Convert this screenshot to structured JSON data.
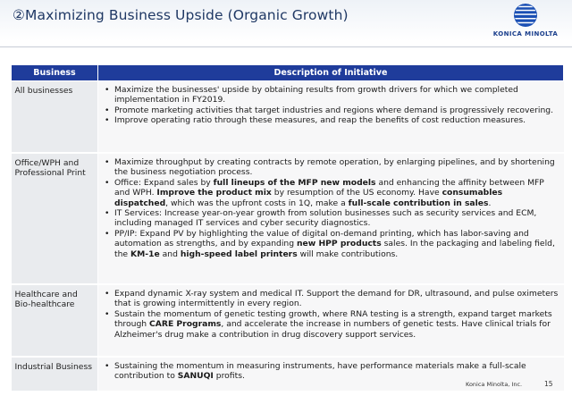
{
  "header": {
    "title": "②Maximizing Business Upside (Organic Growth)",
    "logo_text": "KONICA MINOLTA"
  },
  "table": {
    "columns": [
      "Business",
      "Description of Initiative"
    ],
    "rows": [
      {
        "business": "All businesses",
        "bullets": [
          [
            {
              "t": "Maximize the businesses' upside by obtaining results from growth drivers for which we completed implementation in FY2019."
            }
          ],
          [
            {
              "t": "Promote marketing activities that target industries and regions where demand is progressively recovering."
            }
          ],
          [
            {
              "t": "Improve operating ratio through these measures, and reap the benefits of cost reduction measures."
            }
          ]
        ]
      },
      {
        "business": "Office/WPH and Professional Print",
        "bullets": [
          [
            {
              "t": "Maximize throughput by creating contracts by remote operation, by enlarging pipelines, and by shortening the business negotiation process."
            }
          ],
          [
            {
              "t": "Office: Expand sales by "
            },
            {
              "t": "full lineups of the MFP new models",
              "b": true
            },
            {
              "t": " and enhancing the affinity between MFP and WPH. "
            },
            {
              "t": "Improve the product mix",
              "b": true
            },
            {
              "t": " by resumption of the US economy. Have "
            },
            {
              "t": "consumables dispatched",
              "b": true
            },
            {
              "t": ", which was the upfront costs in 1Q, make a "
            },
            {
              "t": "full-scale contribution in sales",
              "b": true
            },
            {
              "t": "."
            }
          ],
          [
            {
              "t": "IT Services: Increase year-on-year growth from solution businesses such as security services and ECM, including managed IT services and cyber security diagnostics."
            }
          ],
          [
            {
              "t": "PP/IP: Expand PV by highlighting the value of digital on-demand printing, which has labor-saving and automation as strengths, and by expanding "
            },
            {
              "t": "new HPP products",
              "b": true
            },
            {
              "t": " sales. In the packaging and labeling field, the "
            },
            {
              "t": "KM-1e",
              "b": true
            },
            {
              "t": " and "
            },
            {
              "t": "high-speed label printers",
              "b": true
            },
            {
              "t": " will make contributions."
            }
          ]
        ]
      },
      {
        "business": "Healthcare and Bio-healthcare",
        "bullets": [
          [
            {
              "t": "Expand dynamic X-ray system and medical IT. Support the demand for DR, ultrasound, and pulse oximeters that is growing intermittently in every region."
            }
          ],
          [
            {
              "t": "Sustain the momentum of genetic testing growth, where RNA testing is a strength, expand target markets through "
            },
            {
              "t": "CARE Programs",
              "b": true
            },
            {
              "t": ", and accelerate the increase in numbers of genetic tests. Have clinical trials for Alzheimer's drug make a contribution in drug discovery support services."
            }
          ]
        ]
      },
      {
        "business": "Industrial Business",
        "bullets": [
          [
            {
              "t": "Sustaining the momentum in measuring instruments, have performance materials make a full-scale contribution to "
            },
            {
              "t": "SANUQI",
              "b": true
            },
            {
              "t": " profits."
            }
          ]
        ]
      }
    ]
  },
  "footer": {
    "company": "Konica Minolta, Inc.",
    "page": "15"
  },
  "colors": {
    "header_blue": "#1f3c9b",
    "title_navy": "#1f3864",
    "business_cell": "#e9ebee",
    "description_cell": "#f7f7f8"
  }
}
